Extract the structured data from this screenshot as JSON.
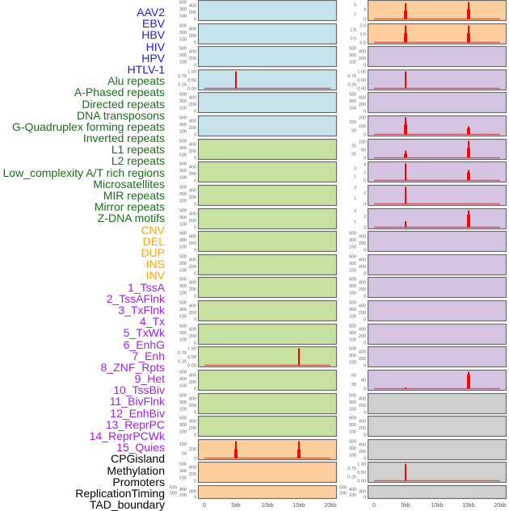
{
  "group_colors": {
    "virus": "#1a1aee",
    "repeat": "#1a6e1a",
    "sv": "#ffa500",
    "chromhmm": "#a020f0",
    "other": "#000000"
  },
  "panel_colors": {
    "blue": "#c6e3ec",
    "green": "#c8e0a0",
    "orange": "#fdcf9e",
    "purple": "#d5c5e2",
    "gray": "#d0d0d0"
  },
  "spike_color": "#ff0000",
  "chart_data": {
    "type": "bar",
    "xlabel": "",
    "xlim": [
      0,
      20
    ],
    "x_ticks": [
      "0",
      "5kb",
      "10kb",
      "15kb",
      "20kb"
    ],
    "default_ticks": [
      "0",
      "100",
      "200",
      "300",
      "400",
      "500"
    ],
    "columns": [
      {
        "panels": [
          {
            "label": "AAV2",
            "group": "virus",
            "bg": "blue"
          },
          {
            "label": "EBV",
            "group": "virus",
            "bg": "blue"
          },
          {
            "label": "HBV",
            "group": "virus",
            "bg": "blue"
          },
          {
            "label": "HIV",
            "group": "virus",
            "bg": "blue",
            "ticks": [
              "0.00",
              "0.25",
              "0.50",
              "0.75",
              "1.00"
            ],
            "ymax": 1,
            "spikes": [
              {
                "pos": 5,
                "peak": 1,
                "shoulder": 0
              }
            ]
          },
          {
            "label": "HPV",
            "group": "virus",
            "bg": "blue"
          },
          {
            "label": "HTLV-1",
            "group": "virus",
            "bg": "blue"
          },
          {
            "label": "Alu repeats",
            "group": "repeat",
            "bg": "green"
          },
          {
            "label": "A-Phased repeats",
            "group": "repeat",
            "bg": "green"
          },
          {
            "label": "Directed repeats",
            "group": "repeat",
            "bg": "green"
          },
          {
            "label": "DNA transposons",
            "group": "repeat",
            "bg": "green"
          },
          {
            "label": "G-Quadruplex forming repeats",
            "group": "repeat",
            "bg": "green"
          },
          {
            "label": "Inverted repeats",
            "group": "repeat",
            "bg": "green"
          },
          {
            "label": "L1 repeats",
            "group": "repeat",
            "bg": "green"
          },
          {
            "label": "L2 repeats",
            "group": "repeat",
            "bg": "green"
          },
          {
            "label": "Low_complexity A/T rich regions",
            "group": "repeat",
            "bg": "green"
          },
          {
            "label": "Microsatellites",
            "group": "repeat",
            "bg": "green",
            "ticks": [
              "0.00",
              "0.25",
              "0.50",
              "0.75",
              "1.00"
            ],
            "ymax": 1,
            "spikes": [
              {
                "pos": 15,
                "peak": 1,
                "shoulder": 0
              }
            ]
          },
          {
            "label": "MIR repeats",
            "group": "repeat",
            "bg": "green"
          },
          {
            "label": "Mirror repeats",
            "group": "repeat",
            "bg": "green"
          },
          {
            "label": "Z-DNA motifs",
            "group": "repeat",
            "bg": "green"
          },
          {
            "label": "CNV",
            "group": "sv",
            "bg": "orange",
            "ticks": [
              "0",
              "50",
              "100",
              "150"
            ],
            "ymax": 180,
            "spikes": [
              {
                "pos": 5,
                "peak": 180,
                "shoulder": 95
              },
              {
                "pos": 15,
                "peak": 180,
                "shoulder": 95
              }
            ]
          },
          {
            "label": "DEL",
            "group": "sv",
            "bg": "orange"
          },
          {
            "label": "DUP",
            "group": "sv",
            "bg": "orange"
          }
        ]
      },
      {
        "panels": [
          {
            "label": "INS",
            "group": "sv",
            "bg": "orange",
            "ticks": [
              "0",
              "2",
              "4",
              "6"
            ],
            "ymax": 7,
            "spikes": [
              {
                "pos": 5,
                "peak": 6.5,
                "shoulder": 3.5
              },
              {
                "pos": 15,
                "peak": 7,
                "shoulder": 4
              }
            ]
          },
          {
            "label": "INV",
            "group": "sv",
            "bg": "orange",
            "ticks": [
              "0.0",
              "0.5",
              "1.0",
              "1.5",
              "2.0"
            ],
            "ymax": 2,
            "spikes": [
              {
                "pos": 5,
                "peak": 2,
                "shoulder": 1.1
              },
              {
                "pos": 15,
                "peak": 2,
                "shoulder": 1.1
              }
            ]
          },
          {
            "label": "1_TssA",
            "group": "chromhmm",
            "bg": "purple"
          },
          {
            "label": "2_TssAFlnk",
            "group": "chromhmm",
            "bg": "purple",
            "ticks": [
              "0.00",
              "0.25",
              "0.50",
              "0.75",
              "1.00"
            ],
            "ymax": 1,
            "spikes": [
              {
                "pos": 5,
                "peak": 1,
                "shoulder": 0
              }
            ]
          },
          {
            "label": "3_TxFlnk",
            "group": "chromhmm",
            "bg": "purple"
          },
          {
            "label": "4_Tx",
            "group": "chromhmm",
            "bg": "purple",
            "ticks": [
              "0",
              "50",
              "100",
              "150",
              "200"
            ],
            "ymax": 200,
            "spikes": [
              {
                "pos": 5,
                "peak": 200,
                "shoulder": 120
              },
              {
                "pos": 15,
                "peak": 95,
                "shoulder": 75
              }
            ]
          },
          {
            "label": "5_TxWk",
            "group": "chromhmm",
            "bg": "purple",
            "ticks": [
              "0",
              "25",
              "50",
              "75",
              "100"
            ],
            "ymax": 105,
            "spikes": [
              {
                "pos": 5,
                "peak": 45,
                "shoulder": 25
              },
              {
                "pos": 15,
                "peak": 105,
                "shoulder": 60
              }
            ]
          },
          {
            "label": "6_EnhG",
            "group": "chromhmm",
            "bg": "purple",
            "ticks": [
              "0",
              "1",
              "2",
              "3",
              "4"
            ],
            "ymax": 4.2,
            "spikes": [
              {
                "pos": 5,
                "peak": 4.2,
                "shoulder": 0
              },
              {
                "pos": 15,
                "peak": 2.6,
                "shoulder": 2
              }
            ]
          },
          {
            "label": "7_Enh",
            "group": "chromhmm",
            "bg": "purple",
            "ticks": [
              "0",
              "1",
              "2",
              "3"
            ],
            "ymax": 3.1,
            "spikes": [
              {
                "pos": 5,
                "peak": 3.1,
                "shoulder": 0
              }
            ]
          },
          {
            "label": "8_ZNF_Rpts",
            "group": "chromhmm",
            "bg": "purple",
            "ticks": [
              "0",
              "1",
              "2",
              "3"
            ],
            "ymax": 3.1,
            "spikes": [
              {
                "pos": 5,
                "peak": 1.1,
                "shoulder": 0
              },
              {
                "pos": 15,
                "peak": 3.1,
                "shoulder": 2.3
              }
            ]
          },
          {
            "label": "9_Het",
            "group": "chromhmm",
            "bg": "purple"
          },
          {
            "label": "10_TssBiv",
            "group": "chromhmm",
            "bg": "purple"
          },
          {
            "label": "11_BivFlnk",
            "group": "chromhmm",
            "bg": "purple"
          },
          {
            "label": "12_EnhBiv",
            "group": "chromhmm",
            "bg": "purple"
          },
          {
            "label": "13_ReprPC",
            "group": "chromhmm",
            "bg": "purple"
          },
          {
            "label": "14_ReprPCWk",
            "group": "chromhmm",
            "bg": "purple"
          },
          {
            "label": "15_Quies",
            "group": "chromhmm",
            "bg": "purple",
            "ticks": [
              "0",
              "20",
              "40",
              "60"
            ],
            "ymax": 75,
            "spikes": [
              {
                "pos": 5,
                "peak": 5,
                "shoulder": 0
              },
              {
                "pos": 15,
                "peak": 75,
                "shoulder": 62
              }
            ]
          },
          {
            "label": "CPGisland",
            "group": "other",
            "bg": "gray"
          },
          {
            "label": "Methylation",
            "group": "other",
            "bg": "gray"
          },
          {
            "label": "Promoters",
            "group": "other",
            "bg": "gray"
          },
          {
            "label": "ReplicationTiming",
            "group": "other",
            "bg": "gray",
            "ticks": [
              "0.00",
              "0.25",
              "0.50",
              "0.75",
              "1.00"
            ],
            "ymax": 1,
            "spikes": [
              {
                "pos": 5,
                "peak": 1,
                "shoulder": 0
              }
            ]
          },
          {
            "label": "TAD_boundary",
            "group": "other",
            "bg": "gray"
          }
        ]
      }
    ]
  }
}
